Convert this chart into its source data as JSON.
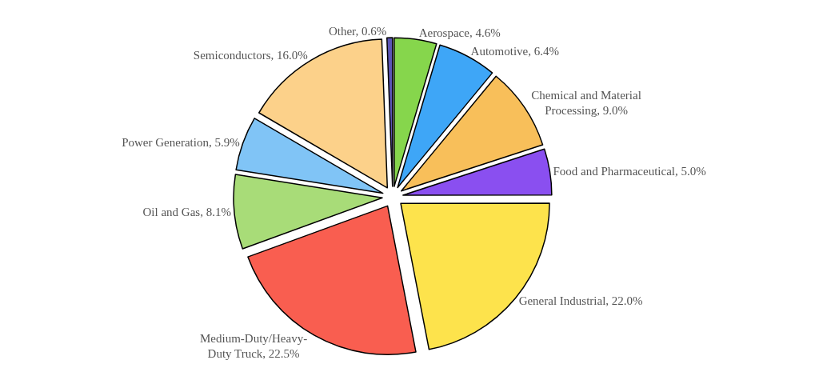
{
  "chart_data": {
    "type": "pie",
    "categories": [
      "Aerospace",
      "Automotive",
      "Chemical and Material Processing",
      "Food and Pharmaceutical",
      "General Industrial",
      "Medium-Duty/Heavy-Duty Truck",
      "Oil and Gas",
      "Power Generation",
      "Semiconductors",
      "Other"
    ],
    "values": [
      4.6,
      6.4,
      9.0,
      5.0,
      22.0,
      22.5,
      8.1,
      5.9,
      16.0,
      0.6
    ],
    "value_labels": [
      "4.6%",
      "6.4%",
      "9.0%",
      "5.0%",
      "22.0%",
      "22.5%",
      "8.1%",
      "5.9%",
      "16.0%",
      "0.6%"
    ],
    "colors": [
      "#86d64c",
      "#3ea6f7",
      "#f8bf5a",
      "#8a4ff0",
      "#fde34c",
      "#f95e50",
      "#a8dc78",
      "#80c4f6",
      "#fcd18a",
      "#5b55b5"
    ],
    "legend": false
  }
}
